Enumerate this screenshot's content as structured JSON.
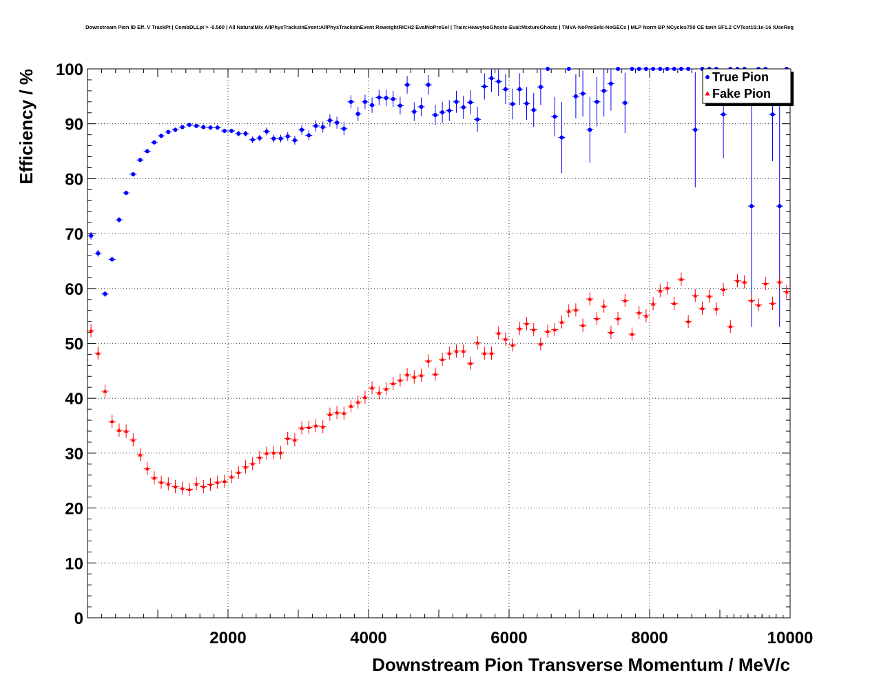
{
  "chart_data": {
    "type": "scatter",
    "title": "Downstream Pion ID Eff. V TrackPt | CombDLLpi > -0.500 | All NaturalMix AllPhysTracksInEvent:AllPhysTracksInEvent ReweightRICH2 EvalNoPreSel | Train:HeavyNoGhosts-Eval:MixtureGhosts | TMVA-NoPreSels-NoGECs | MLP Norm BP NCycles750 CE tanh SF1.2 CVTest15:1e-16 !UseReg",
    "xlabel": "Downstream Pion Transverse Momentum / MeV/c",
    "ylabel": "Efficiency / %",
    "xlim": [
      0,
      10000
    ],
    "ylim": [
      0,
      100
    ],
    "x_ticks": [
      "2000",
      "4000",
      "6000",
      "8000",
      "10000"
    ],
    "y_ticks": [
      "0",
      "10",
      "20",
      "30",
      "40",
      "50",
      "60",
      "70",
      "80",
      "90",
      "100"
    ],
    "grid": true,
    "legend_position": "top-right",
    "series": [
      {
        "name": "True Pion",
        "color": "#0000ff",
        "marker": "circle",
        "x": [
          50,
          150,
          250,
          350,
          450,
          550,
          650,
          750,
          850,
          950,
          1050,
          1150,
          1250,
          1350,
          1450,
          1550,
          1650,
          1750,
          1850,
          1950,
          2050,
          2150,
          2250,
          2350,
          2450,
          2550,
          2650,
          2750,
          2850,
          2950,
          3050,
          3150,
          3250,
          3350,
          3450,
          3550,
          3650,
          3750,
          3850,
          3950,
          4050,
          4150,
          4250,
          4350,
          4450,
          4550,
          4650,
          4750,
          4850,
          4950,
          5050,
          5150,
          5250,
          5350,
          5450,
          5550,
          5650,
          5750,
          5850,
          5950,
          6050,
          6150,
          6250,
          6350,
          6450,
          6550,
          6650,
          6750,
          6850,
          6950,
          7050,
          7150,
          7250,
          7350,
          7450,
          7550,
          7650,
          7750,
          7850,
          7950,
          8050,
          8150,
          8250,
          8350,
          8450,
          8550,
          8650,
          8750,
          8850,
          8950,
          9050,
          9150,
          9250,
          9350,
          9450,
          9550,
          9650,
          9750,
          9850,
          9950
        ],
        "y": [
          69.6,
          66.4,
          59.0,
          65.3,
          72.5,
          77.4,
          80.8,
          83.4,
          85.0,
          86.6,
          87.8,
          88.5,
          88.9,
          89.4,
          89.8,
          89.6,
          89.4,
          89.3,
          89.3,
          88.7,
          88.7,
          88.2,
          88.2,
          87.1,
          87.4,
          88.6,
          87.3,
          87.3,
          87.7,
          87.0,
          88.9,
          87.9,
          89.6,
          89.4,
          90.6,
          90.2,
          89.1,
          94.0,
          91.8,
          94.0,
          93.4,
          94.8,
          94.7,
          94.5,
          93.3,
          97.1,
          92.2,
          93.1,
          97.1,
          91.6,
          92.1,
          92.4,
          94.0,
          93.0,
          93.9,
          90.8,
          96.8,
          98.3,
          97.7,
          96.3,
          93.6,
          96.3,
          93.7,
          92.5,
          96.7,
          100.0,
          91.3,
          87.5,
          100.0,
          95.0,
          95.5,
          88.9,
          94.0,
          96.0,
          97.3,
          100.0,
          93.8,
          100.0,
          100.0,
          100.0,
          100.0,
          100.0,
          100.0,
          100.0,
          100.0,
          100.0,
          88.9,
          100.0,
          100.0,
          100.0,
          91.7,
          100.0,
          100.0,
          100.0,
          75.0,
          100.0,
          100.0,
          91.7,
          75.0,
          100.0
        ],
        "y_err": [
          0.7,
          0.6,
          0.6,
          0.5,
          0.5,
          0.4,
          0.4,
          0.4,
          0.4,
          0.4,
          0.4,
          0.4,
          0.4,
          0.4,
          0.4,
          0.4,
          0.4,
          0.4,
          0.4,
          0.4,
          0.4,
          0.5,
          0.5,
          0.6,
          0.6,
          0.7,
          0.7,
          0.7,
          0.8,
          0.8,
          0.9,
          0.9,
          1.0,
          1.0,
          1.1,
          1.1,
          1.2,
          1.2,
          1.3,
          1.3,
          1.4,
          1.4,
          1.5,
          1.5,
          1.6,
          1.6,
          1.7,
          1.7,
          1.8,
          1.8,
          1.9,
          1.9,
          2.0,
          2.1,
          2.2,
          2.3,
          2.4,
          2.5,
          2.6,
          2.7,
          2.8,
          2.9,
          3.0,
          3.1,
          3.3,
          0,
          3.6,
          6.5,
          0,
          4.0,
          4.2,
          6.0,
          4.5,
          4.7,
          4.9,
          0,
          5.5,
          0,
          0,
          0,
          0,
          0,
          0,
          0,
          0,
          0,
          10.5,
          0,
          0,
          0,
          8.0,
          0,
          0,
          0,
          22.0,
          0,
          0,
          8.5,
          22.0,
          0
        ]
      },
      {
        "name": "Fake Pion",
        "color": "#ff0000",
        "marker": "triangle",
        "x": [
          50,
          150,
          250,
          350,
          450,
          550,
          650,
          750,
          850,
          950,
          1050,
          1150,
          1250,
          1350,
          1450,
          1550,
          1650,
          1750,
          1850,
          1950,
          2050,
          2150,
          2250,
          2350,
          2450,
          2550,
          2650,
          2750,
          2850,
          2950,
          3050,
          3150,
          3250,
          3350,
          3450,
          3550,
          3650,
          3750,
          3850,
          3950,
          4050,
          4150,
          4250,
          4350,
          4450,
          4550,
          4650,
          4750,
          4850,
          4950,
          5050,
          5150,
          5250,
          5350,
          5450,
          5550,
          5650,
          5750,
          5850,
          5950,
          6050,
          6150,
          6250,
          6350,
          6450,
          6550,
          6650,
          6750,
          6850,
          6950,
          7050,
          7150,
          7250,
          7350,
          7450,
          7550,
          7650,
          7750,
          7850,
          7950,
          8050,
          8150,
          8250,
          8350,
          8450,
          8550,
          8650,
          8750,
          8850,
          8950,
          9050,
          9150,
          9250,
          9350,
          9450,
          9550,
          9650,
          9750,
          9850,
          9950
        ],
        "y": [
          52.3,
          48.2,
          41.3,
          35.8,
          34.2,
          34.0,
          32.4,
          29.7,
          27.2,
          25.5,
          24.7,
          24.4,
          23.9,
          23.6,
          23.4,
          24.4,
          23.9,
          24.3,
          24.7,
          24.9,
          25.7,
          26.5,
          27.5,
          28.1,
          29.2,
          30.0,
          30.1,
          30.1,
          32.7,
          32.4,
          34.6,
          34.7,
          35.0,
          34.8,
          37.1,
          37.4,
          37.3,
          38.6,
          39.3,
          40.2,
          41.9,
          41.0,
          41.7,
          42.7,
          43.3,
          44.3,
          43.9,
          44.2,
          46.8,
          44.4,
          47.1,
          48.2,
          48.6,
          48.6,
          46.4,
          50.1,
          48.2,
          48.2,
          51.9,
          50.8,
          49.7,
          52.7,
          53.6,
          52.5,
          49.9,
          52.2,
          52.5,
          53.9,
          55.9,
          56.1,
          53.3,
          58.1,
          54.5,
          56.8,
          52.0,
          54.5,
          57.8,
          51.7,
          55.6,
          55.0,
          57.2,
          59.6,
          60.1,
          57.3,
          61.7,
          54.0,
          58.7,
          56.4,
          58.6,
          56.3,
          59.8,
          53.1,
          61.4,
          61.2,
          57.8,
          57.0,
          60.9,
          57.3,
          61.2,
          59.4
        ]
      }
    ]
  }
}
